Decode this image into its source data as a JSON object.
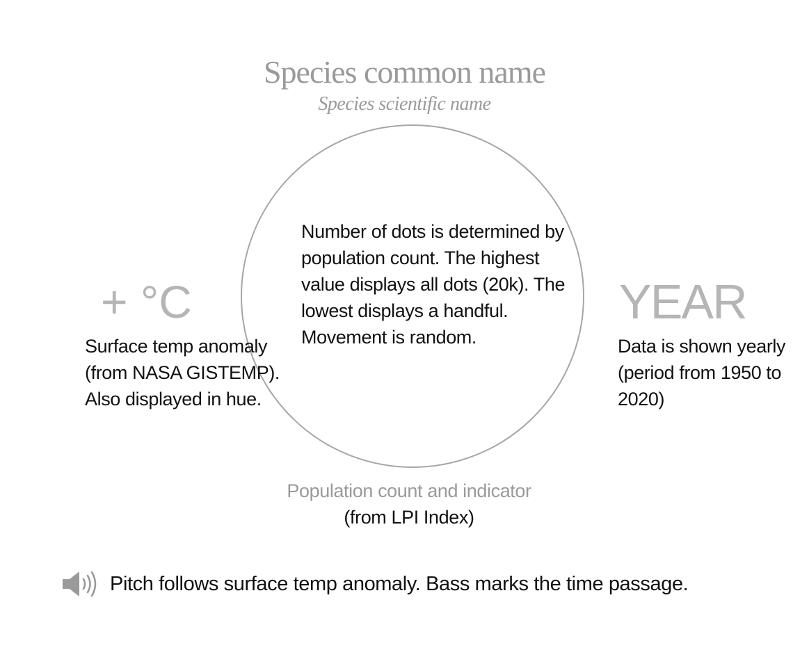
{
  "header": {
    "title": "Species common name",
    "subtitle": "Species scientific name"
  },
  "center": {
    "description": "Number of dots is determined by population count. The highest value displays all dots (20k). The lowest displays a handful. Movement is random."
  },
  "left": {
    "symbol": "+ °C",
    "description": "Surface temp anomaly (from NASA GISTEMP). Also displayed in hue."
  },
  "right": {
    "label": "YEAR",
    "description": "Data is shown yearly (period from 1950 to 2020)"
  },
  "bottom": {
    "label": "Population count and indicator",
    "source": "(from LPI Index)"
  },
  "audio": {
    "icon": "speaker-icon",
    "text": "Pitch follows surface temp anomaly. Bass marks the time passage."
  },
  "colors": {
    "muted": "#9a9a9a",
    "circle": "#a6a6a6",
    "text": "#111111"
  }
}
